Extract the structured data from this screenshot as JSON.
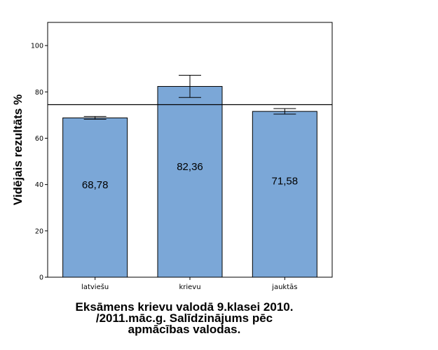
{
  "chart_data": {
    "type": "bar",
    "categories": [
      "latviešu",
      "krievu",
      "jauktās"
    ],
    "values": [
      68.78,
      82.36,
      71.58
    ],
    "value_labels": [
      "68,78",
      "82,36",
      "71,58"
    ],
    "error_bars": [
      {
        "low": 68.2,
        "high": 69.4
      },
      {
        "low": 77.6,
        "high": 87.2
      },
      {
        "low": 70.4,
        "high": 72.8
      }
    ],
    "reference_line": 74.5,
    "ylabel": "Vidējais rezultāts %",
    "xlabel_lines": [
      "Eksāmens krievu valodā 9.klasei 2010.",
      "/2011.māc.g. Salīdzinājums pēc",
      "apmācības valodas."
    ],
    "ylim": [
      0,
      100
    ],
    "y_ticks": [
      "0",
      "20",
      "40",
      "60",
      "80",
      "100"
    ],
    "grid": false,
    "bar_color": "#7ba7d7",
    "bar_stroke": "#000000"
  }
}
